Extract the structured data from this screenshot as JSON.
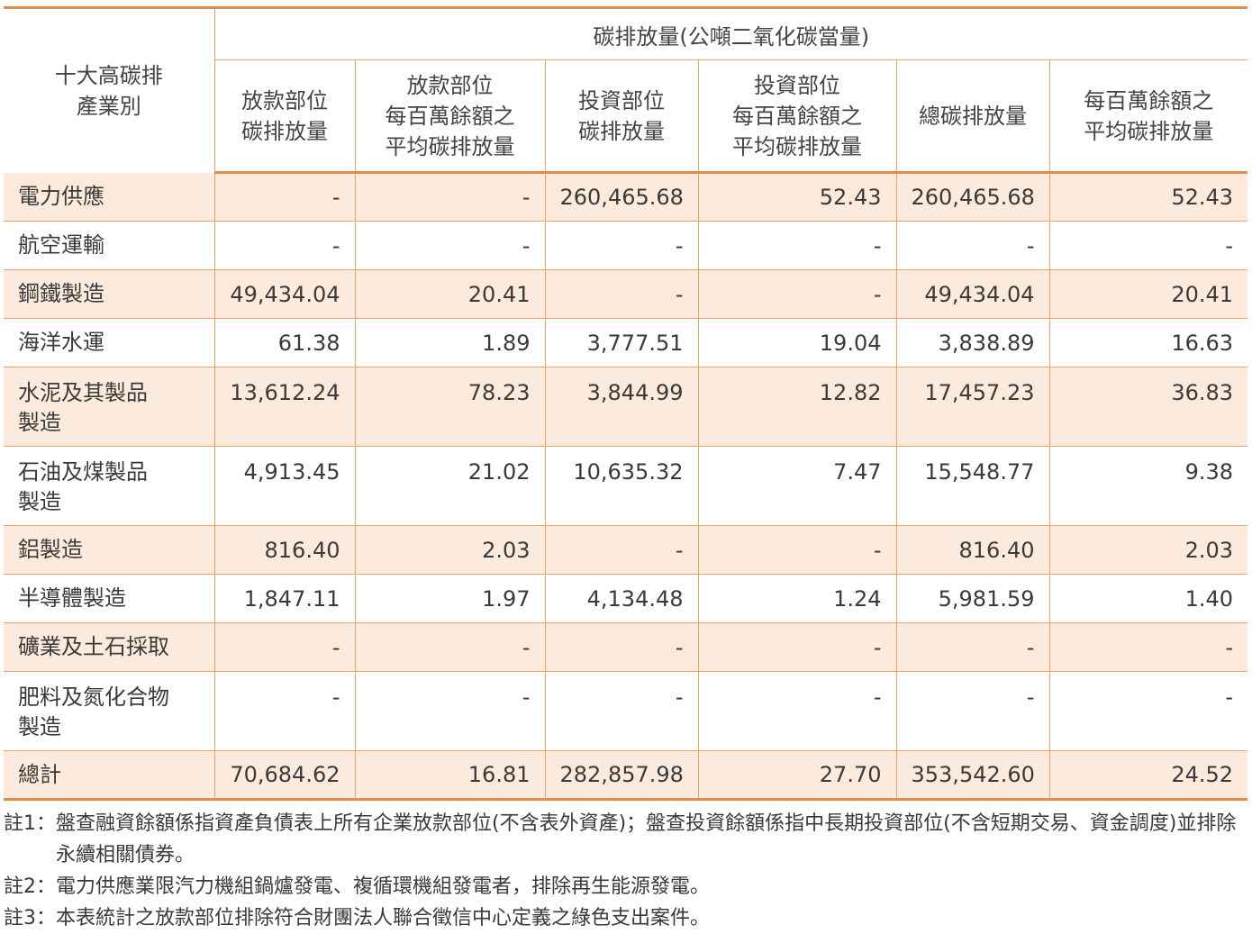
{
  "table": {
    "group_header": "碳排放量(公噸二氧化碳當量)",
    "corner_header": [
      "十大高碳排",
      "產業別"
    ],
    "columns": [
      [
        "放款部位",
        "碳排放量"
      ],
      [
        "放款部位",
        "每百萬餘額之",
        "平均碳排放量"
      ],
      [
        "投資部位",
        "碳排放量"
      ],
      [
        "投資部位",
        "每百萬餘額之",
        "平均碳排放量"
      ],
      [
        "總碳排放量"
      ],
      [
        "每百萬餘額之",
        "平均碳排放量"
      ]
    ],
    "rows": [
      {
        "name": [
          "電力供應"
        ],
        "values": [
          "-",
          "-",
          "260,465.68",
          "52.43",
          "260,465.68",
          "52.43"
        ]
      },
      {
        "name": [
          "航空運輸"
        ],
        "values": [
          "-",
          "-",
          "-",
          "-",
          "-",
          "-"
        ]
      },
      {
        "name": [
          "鋼鐵製造"
        ],
        "values": [
          "49,434.04",
          "20.41",
          "-",
          "-",
          "49,434.04",
          "20.41"
        ]
      },
      {
        "name": [
          "海洋水運"
        ],
        "values": [
          "61.38",
          "1.89",
          "3,777.51",
          "19.04",
          "3,838.89",
          "16.63"
        ]
      },
      {
        "name": [
          "水泥及其製品",
          "製造"
        ],
        "values": [
          "13,612.24",
          "78.23",
          "3,844.99",
          "12.82",
          "17,457.23",
          "36.83"
        ]
      },
      {
        "name": [
          "石油及煤製品",
          "製造"
        ],
        "values": [
          "4,913.45",
          "21.02",
          "10,635.32",
          "7.47",
          "15,548.77",
          "9.38"
        ]
      },
      {
        "name": [
          "鋁製造"
        ],
        "values": [
          "816.40",
          "2.03",
          "-",
          "-",
          "816.40",
          "2.03"
        ]
      },
      {
        "name": [
          "半導體製造"
        ],
        "values": [
          "1,847.11",
          "1.97",
          "4,134.48",
          "1.24",
          "5,981.59",
          "1.40"
        ]
      },
      {
        "name": [
          "礦業及土石採取"
        ],
        "values": [
          "-",
          "-",
          "-",
          "-",
          "-",
          "-"
        ]
      },
      {
        "name": [
          "肥料及氮化合物",
          "製造"
        ],
        "values": [
          "-",
          "-",
          "-",
          "-",
          "-",
          "-"
        ]
      },
      {
        "name": [
          "總計"
        ],
        "values": [
          "70,684.62",
          "16.81",
          "282,857.98",
          "27.70",
          "353,542.60",
          "24.52"
        ]
      }
    ]
  },
  "notes": [
    {
      "label": "註1：",
      "text": "盤查融資餘額係指資產負債表上所有企業放款部位(不含表外資產)；盤查投資餘額係指中長期投資部位(不含短期交易、資金調度)並排除永續相關債券。"
    },
    {
      "label": "註2：",
      "text": "電力供應業限汽力機組鍋爐發電、複循環機組發電者，排除再生能源發電。"
    },
    {
      "label": "註3：",
      "text": "本表統計之放款部位排除符合財團法人聯合徵信中心定義之綠色支出案件。"
    }
  ],
  "colors": {
    "accent_border": "#e58a48",
    "row_shade": "#fcebdc",
    "text": "#3a3a3a"
  }
}
